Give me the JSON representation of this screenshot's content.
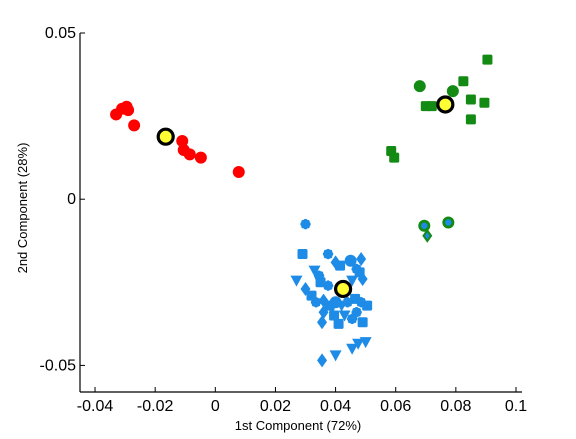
{
  "chart_data": {
    "type": "scatter",
    "xlabel": "1st Component (72%)",
    "ylabel": "2nd Component (28%)",
    "xlim": [
      -0.045,
      0.102
    ],
    "ylim": [
      -0.058,
      0.05
    ],
    "x_ticks": [
      -0.04,
      -0.02,
      0,
      0.02,
      0.04,
      0.06,
      0.08,
      0.1
    ],
    "x_tick_labels": [
      "-0.04",
      "-0.02",
      "0",
      "0.02",
      "0.04",
      "0.06",
      "0.08",
      "0.1"
    ],
    "y_ticks": [
      -0.05,
      0,
      0.05
    ],
    "y_tick_labels": [
      "-0.05",
      "0",
      "0.05"
    ],
    "grid": false,
    "series": [
      {
        "color": "#ff0000",
        "points": [
          {
            "x": -0.033,
            "y": 0.0255,
            "shape": "circle"
          },
          {
            "x": -0.031,
            "y": 0.0272,
            "shape": "circle"
          },
          {
            "x": -0.0295,
            "y": 0.0278,
            "shape": "circle"
          },
          {
            "x": -0.029,
            "y": 0.0268,
            "shape": "circle"
          },
          {
            "x": -0.027,
            "y": 0.0222,
            "shape": "circle"
          },
          {
            "x": -0.011,
            "y": 0.0175,
            "shape": "circle"
          },
          {
            "x": -0.0105,
            "y": 0.0148,
            "shape": "circle"
          },
          {
            "x": -0.0085,
            "y": 0.0135,
            "shape": "circle"
          },
          {
            "x": -0.0048,
            "y": 0.0125,
            "shape": "circle"
          },
          {
            "x": 0.0078,
            "y": 0.0082,
            "shape": "circle"
          }
        ]
      },
      {
        "color": "#1e8ce6",
        "points": [
          {
            "x": 0.03,
            "y": -0.0075,
            "shape": "star"
          },
          {
            "x": 0.029,
            "y": -0.0165,
            "shape": "square"
          },
          {
            "x": 0.027,
            "y": -0.0245,
            "shape": "triangle-down"
          },
          {
            "x": 0.03,
            "y": -0.027,
            "shape": "diamond"
          },
          {
            "x": 0.033,
            "y": -0.0215,
            "shape": "triangle-down"
          },
          {
            "x": 0.0345,
            "y": -0.023,
            "shape": "star"
          },
          {
            "x": 0.0375,
            "y": -0.0165,
            "shape": "star"
          },
          {
            "x": 0.04,
            "y": -0.019,
            "shape": "diamond"
          },
          {
            "x": 0.0415,
            "y": -0.02,
            "shape": "square"
          },
          {
            "x": 0.045,
            "y": -0.0185,
            "shape": "circle"
          },
          {
            "x": 0.0485,
            "y": -0.018,
            "shape": "diamond"
          },
          {
            "x": 0.048,
            "y": -0.022,
            "shape": "square"
          },
          {
            "x": 0.047,
            "y": -0.021,
            "shape": "star"
          },
          {
            "x": 0.0455,
            "y": -0.0245,
            "shape": "triangle-down"
          },
          {
            "x": 0.049,
            "y": -0.024,
            "shape": "diamond"
          },
          {
            "x": 0.035,
            "y": -0.025,
            "shape": "square"
          },
          {
            "x": 0.0375,
            "y": -0.026,
            "shape": "star"
          },
          {
            "x": 0.032,
            "y": -0.029,
            "shape": "square"
          },
          {
            "x": 0.0335,
            "y": -0.031,
            "shape": "star"
          },
          {
            "x": 0.036,
            "y": -0.0305,
            "shape": "diamond"
          },
          {
            "x": 0.038,
            "y": -0.032,
            "shape": "square"
          },
          {
            "x": 0.04,
            "y": -0.031,
            "shape": "circle"
          },
          {
            "x": 0.042,
            "y": -0.032,
            "shape": "triangle-down"
          },
          {
            "x": 0.044,
            "y": -0.031,
            "shape": "star"
          },
          {
            "x": 0.0465,
            "y": -0.03,
            "shape": "square"
          },
          {
            "x": 0.0485,
            "y": -0.031,
            "shape": "star"
          },
          {
            "x": 0.0505,
            "y": -0.032,
            "shape": "square"
          },
          {
            "x": 0.047,
            "y": -0.034,
            "shape": "star"
          },
          {
            "x": 0.036,
            "y": -0.034,
            "shape": "diamond"
          },
          {
            "x": 0.0395,
            "y": -0.035,
            "shape": "square"
          },
          {
            "x": 0.043,
            "y": -0.035,
            "shape": "triangle-down"
          },
          {
            "x": 0.0455,
            "y": -0.036,
            "shape": "star"
          },
          {
            "x": 0.0355,
            "y": -0.037,
            "shape": "diamond"
          },
          {
            "x": 0.041,
            "y": -0.0375,
            "shape": "square"
          },
          {
            "x": 0.049,
            "y": -0.037,
            "shape": "square"
          },
          {
            "x": 0.05,
            "y": -0.043,
            "shape": "triangle-down"
          },
          {
            "x": 0.0475,
            "y": -0.0435,
            "shape": "triangle-down"
          },
          {
            "x": 0.0455,
            "y": -0.045,
            "shape": "triangle-down"
          },
          {
            "x": 0.04,
            "y": -0.047,
            "shape": "triangle-down"
          },
          {
            "x": 0.0355,
            "y": -0.0485,
            "shape": "diamond"
          }
        ]
      },
      {
        "color": "#138a13",
        "points": [
          {
            "x": 0.068,
            "y": 0.034,
            "shape": "circle"
          },
          {
            "x": 0.07,
            "y": 0.028,
            "shape": "square"
          },
          {
            "x": 0.072,
            "y": 0.028,
            "shape": "square"
          },
          {
            "x": 0.079,
            "y": 0.0325,
            "shape": "circle"
          },
          {
            "x": 0.0825,
            "y": 0.0355,
            "shape": "square"
          },
          {
            "x": 0.085,
            "y": 0.03,
            "shape": "square"
          },
          {
            "x": 0.085,
            "y": 0.024,
            "shape": "square"
          },
          {
            "x": 0.0895,
            "y": 0.029,
            "shape": "square"
          },
          {
            "x": 0.0905,
            "y": 0.042,
            "shape": "square"
          },
          {
            "x": 0.0585,
            "y": 0.0145,
            "shape": "square"
          },
          {
            "x": 0.0595,
            "y": 0.0125,
            "shape": "square"
          },
          {
            "x": 0.0695,
            "y": -0.008,
            "shape": "ring-circle"
          },
          {
            "x": 0.0705,
            "y": -0.011,
            "shape": "ring-diamond"
          },
          {
            "x": 0.0775,
            "y": -0.007,
            "shape": "ring-circle"
          }
        ]
      }
    ],
    "centroids": [
      {
        "x": -0.0165,
        "y": 0.0188,
        "color": "#ffff33"
      },
      {
        "x": 0.0425,
        "y": -0.027,
        "color": "#ffff33"
      },
      {
        "x": 0.0765,
        "y": 0.0285,
        "color": "#ffff33"
      }
    ]
  }
}
